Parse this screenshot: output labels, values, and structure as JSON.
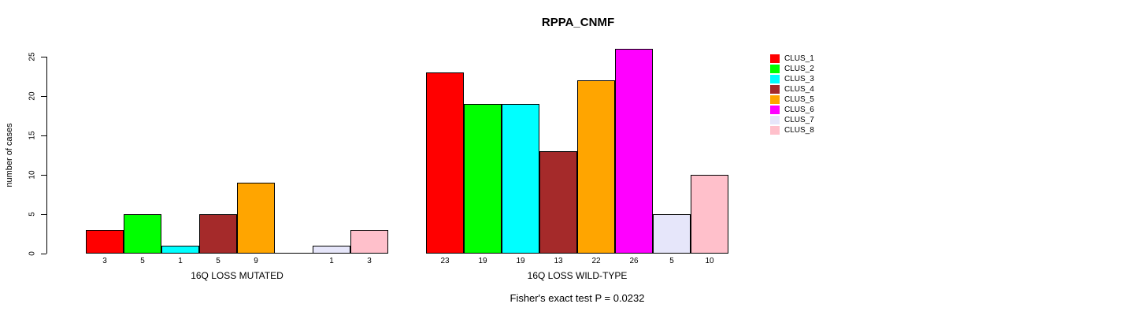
{
  "chart_data": {
    "type": "bar",
    "title": "RPPA_CNMF",
    "ylabel": "number of cases",
    "ylim": [
      0,
      25
    ],
    "yticks": [
      0,
      5,
      10,
      15,
      20,
      25
    ],
    "grid": false,
    "legend_position": "right",
    "clusters": [
      {
        "name": "CLUS_1",
        "color": "#FF0000"
      },
      {
        "name": "CLUS_2",
        "color": "#00FF00"
      },
      {
        "name": "CLUS_3",
        "color": "#00FFFF"
      },
      {
        "name": "CLUS_4",
        "color": "#A52A2A"
      },
      {
        "name": "CLUS_5",
        "color": "#FFA500"
      },
      {
        "name": "CLUS_6",
        "color": "#FF00FF"
      },
      {
        "name": "CLUS_7",
        "color": "#E6E6FA"
      },
      {
        "name": "CLUS_8",
        "color": "#FFC0CB"
      }
    ],
    "groups": [
      {
        "label": "16Q LOSS MUTATED",
        "values": [
          3,
          5,
          1,
          5,
          9,
          0,
          1,
          3
        ],
        "bar_labels": [
          "3",
          "5",
          "1",
          "5",
          "9",
          "",
          "1",
          "3"
        ]
      },
      {
        "label": "16Q LOSS WILD-TYPE",
        "values": [
          23,
          19,
          19,
          13,
          22,
          26,
          5,
          10
        ],
        "bar_labels": [
          "23",
          "19",
          "19",
          "13",
          "22",
          "26",
          "5",
          "10"
        ]
      }
    ],
    "annotation": "Fisher's exact test P = 0.0232"
  }
}
